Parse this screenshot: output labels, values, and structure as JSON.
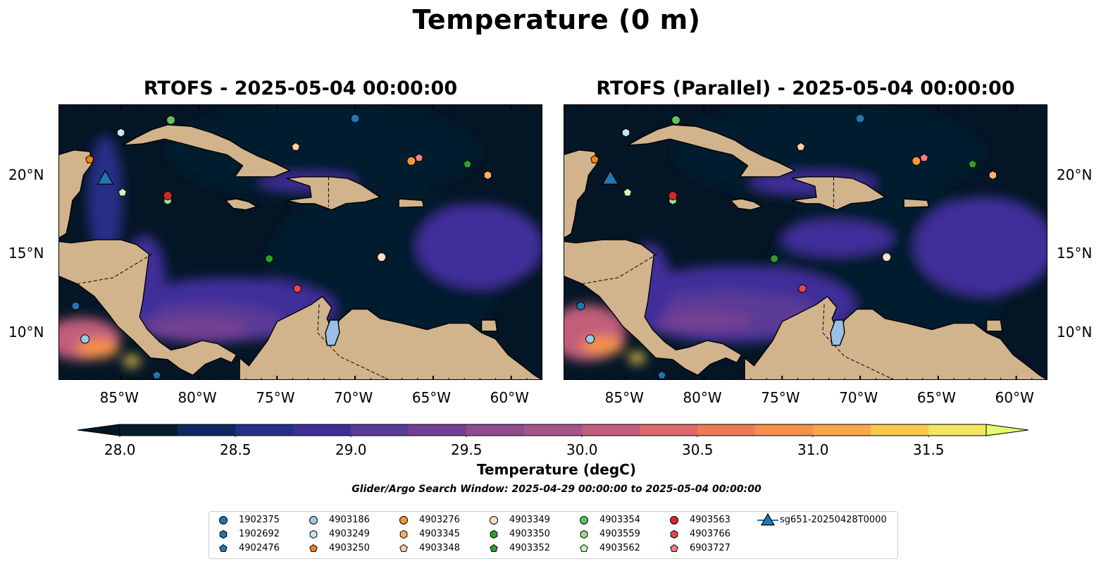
{
  "suptitle": "Temperature (0 m)",
  "panels": [
    {
      "title": "RTOFS - 2025-05-04 00:00:00"
    },
    {
      "title": "RTOFS (Parallel) - 2025-05-04 00:00:00"
    }
  ],
  "axes": {
    "x_ticks": [
      "85°W",
      "80°W",
      "75°W",
      "70°W",
      "65°W",
      "60°W"
    ],
    "y_ticks": [
      "20°N",
      "15°N",
      "10°N"
    ]
  },
  "colorbar": {
    "label": "Temperature (degC)",
    "tick_labels": [
      "28.0",
      "28.5",
      "29.0",
      "29.5",
      "30.0",
      "30.5",
      "31.0",
      "31.5"
    ],
    "colors": [
      "#061c2e",
      "#0c2a62",
      "#262e87",
      "#402f9a",
      "#5a3b97",
      "#743f93",
      "#8e4b8e",
      "#a85489",
      "#c25d7c",
      "#dc6a6a",
      "#ec7a55",
      "#f6904a",
      "#f8a847",
      "#f6c84c",
      "#f2e561"
    ],
    "under_color": "#041626",
    "over_color": "#e8f870"
  },
  "search_window": "Glider/Argo Search Window: 2025-04-29 00:00:00 to 2025-05-04 00:00:00",
  "chart_data": {
    "type": "heatmap",
    "title": "Temperature (0 m)",
    "variable": "Temperature",
    "units": "degC",
    "xlim": [
      -89,
      -58
    ],
    "ylim": [
      7,
      24.5
    ],
    "clim": [
      28.0,
      31.5
    ],
    "panels": [
      "RTOFS - 2025-05-04 00:00:00",
      "RTOFS (Parallel) - 2025-05-04 00:00:00"
    ],
    "legend_position": "bottom",
    "series": [
      {
        "name": "1902375",
        "marker": "circle",
        "color": "#1f77b4",
        "lon": -70.0,
        "lat": 23.6
      },
      {
        "name": "1902692",
        "marker": "hexagon",
        "color": "#1f77b4",
        "lon": -87.9,
        "lat": 11.7
      },
      {
        "name": "4902476",
        "marker": "pentagon",
        "color": "#1f77b4",
        "lon": -82.7,
        "lat": 7.3
      },
      {
        "name": "4903186",
        "marker": "circle",
        "color": "#9ec9e5",
        "lon": -87.3,
        "lat": 9.6
      },
      {
        "name": "4903249",
        "marker": "hexagon",
        "color": "#c8e3f4",
        "lon": -85.0,
        "lat": 22.7
      },
      {
        "name": "4903250",
        "marker": "pentagon",
        "color": "#ff7f0e",
        "lon": -87.0,
        "lat": 21.0
      },
      {
        "name": "4903276",
        "marker": "circle",
        "color": "#fd9437",
        "lon": -66.4,
        "lat": 20.9
      },
      {
        "name": "4903345",
        "marker": "hexagon",
        "color": "#fdae6b",
        "lon": -61.5,
        "lat": 20.0
      },
      {
        "name": "4903348",
        "marker": "pentagon",
        "color": "#fdd0a2",
        "lon": -73.8,
        "lat": 21.8
      },
      {
        "name": "4903349",
        "marker": "circle",
        "color": "#fde0c7",
        "lon": -68.3,
        "lat": 14.8
      },
      {
        "name": "4903350",
        "marker": "hexagon",
        "color": "#2ca02c",
        "lon": -75.5,
        "lat": 14.7
      },
      {
        "name": "4903352",
        "marker": "pentagon",
        "color": "#2ca02c",
        "lon": -62.8,
        "lat": 20.7
      },
      {
        "name": "4903354",
        "marker": "circle",
        "color": "#5fc45f",
        "lon": -81.8,
        "lat": 23.5
      },
      {
        "name": "4903559",
        "marker": "hexagon",
        "color": "#98df8a",
        "lon": -82.0,
        "lat": 18.4
      },
      {
        "name": "4903562",
        "marker": "pentagon",
        "color": "#c7f5bd",
        "lon": -84.9,
        "lat": 18.9
      },
      {
        "name": "4903563",
        "marker": "circle",
        "color": "#d62728",
        "lon": -82.0,
        "lat": 18.7
      },
      {
        "name": "4903766",
        "marker": "hexagon",
        "color": "#e8474a",
        "lon": -73.7,
        "lat": 12.8
      },
      {
        "name": "6903727",
        "marker": "pentagon",
        "color": "#f08080",
        "lon": -65.9,
        "lat": 21.1
      },
      {
        "name": "sg651-20250428T0000",
        "marker": "triangle",
        "color": "#1f77b4",
        "lon": -86.0,
        "lat": 19.8
      }
    ]
  }
}
